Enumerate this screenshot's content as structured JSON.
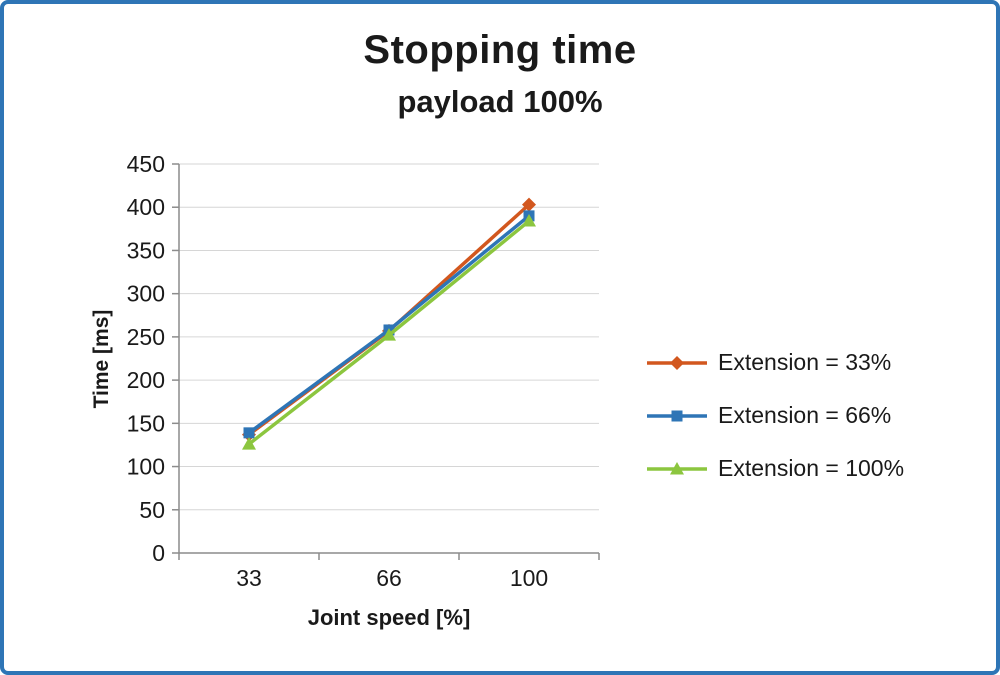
{
  "chart_data": {
    "type": "line",
    "title": "Stopping time",
    "subtitle": "payload 100%",
    "xlabel": "Joint speed [%]",
    "ylabel": "Time [ms]",
    "categories": [
      "33",
      "66",
      "100"
    ],
    "series": [
      {
        "name": "Extension = 33%",
        "color": "#D2571E",
        "marker": "diamond",
        "values": [
          137,
          257,
          403
        ]
      },
      {
        "name": "Extension = 66%",
        "color": "#2E75B6",
        "marker": "square",
        "values": [
          139,
          258,
          390
        ]
      },
      {
        "name": "Extension = 100%",
        "color": "#8CC63F",
        "marker": "triangle",
        "values": [
          126,
          252,
          384
        ]
      }
    ],
    "ylim": [
      0,
      450
    ],
    "ytick_step": 50,
    "grid": true,
    "legend_position": "right",
    "colors": {
      "gridline": "#D6D6D6",
      "axis": "#8C8C8C",
      "frame_border": "#2E75B6",
      "text": "#1a1a1a"
    }
  }
}
